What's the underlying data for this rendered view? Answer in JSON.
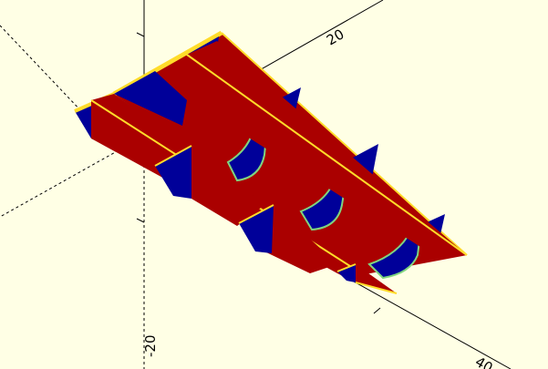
{
  "viewport": {
    "background": "#ffffe5",
    "axes": {
      "color": "#000000",
      "tick_labels": [
        {
          "name": "x-axis-tick-20",
          "text": "20"
        },
        {
          "name": "y-axis-tick-neg20",
          "text": "-20"
        },
        {
          "name": "x-axis-tick-40",
          "text": "40"
        }
      ]
    },
    "model": {
      "colors": {
        "red_face": "#aa0000",
        "blue_face": "#000099",
        "top_edge": "#ffdc2a",
        "cut_edge": "#7fd47f"
      }
    }
  }
}
